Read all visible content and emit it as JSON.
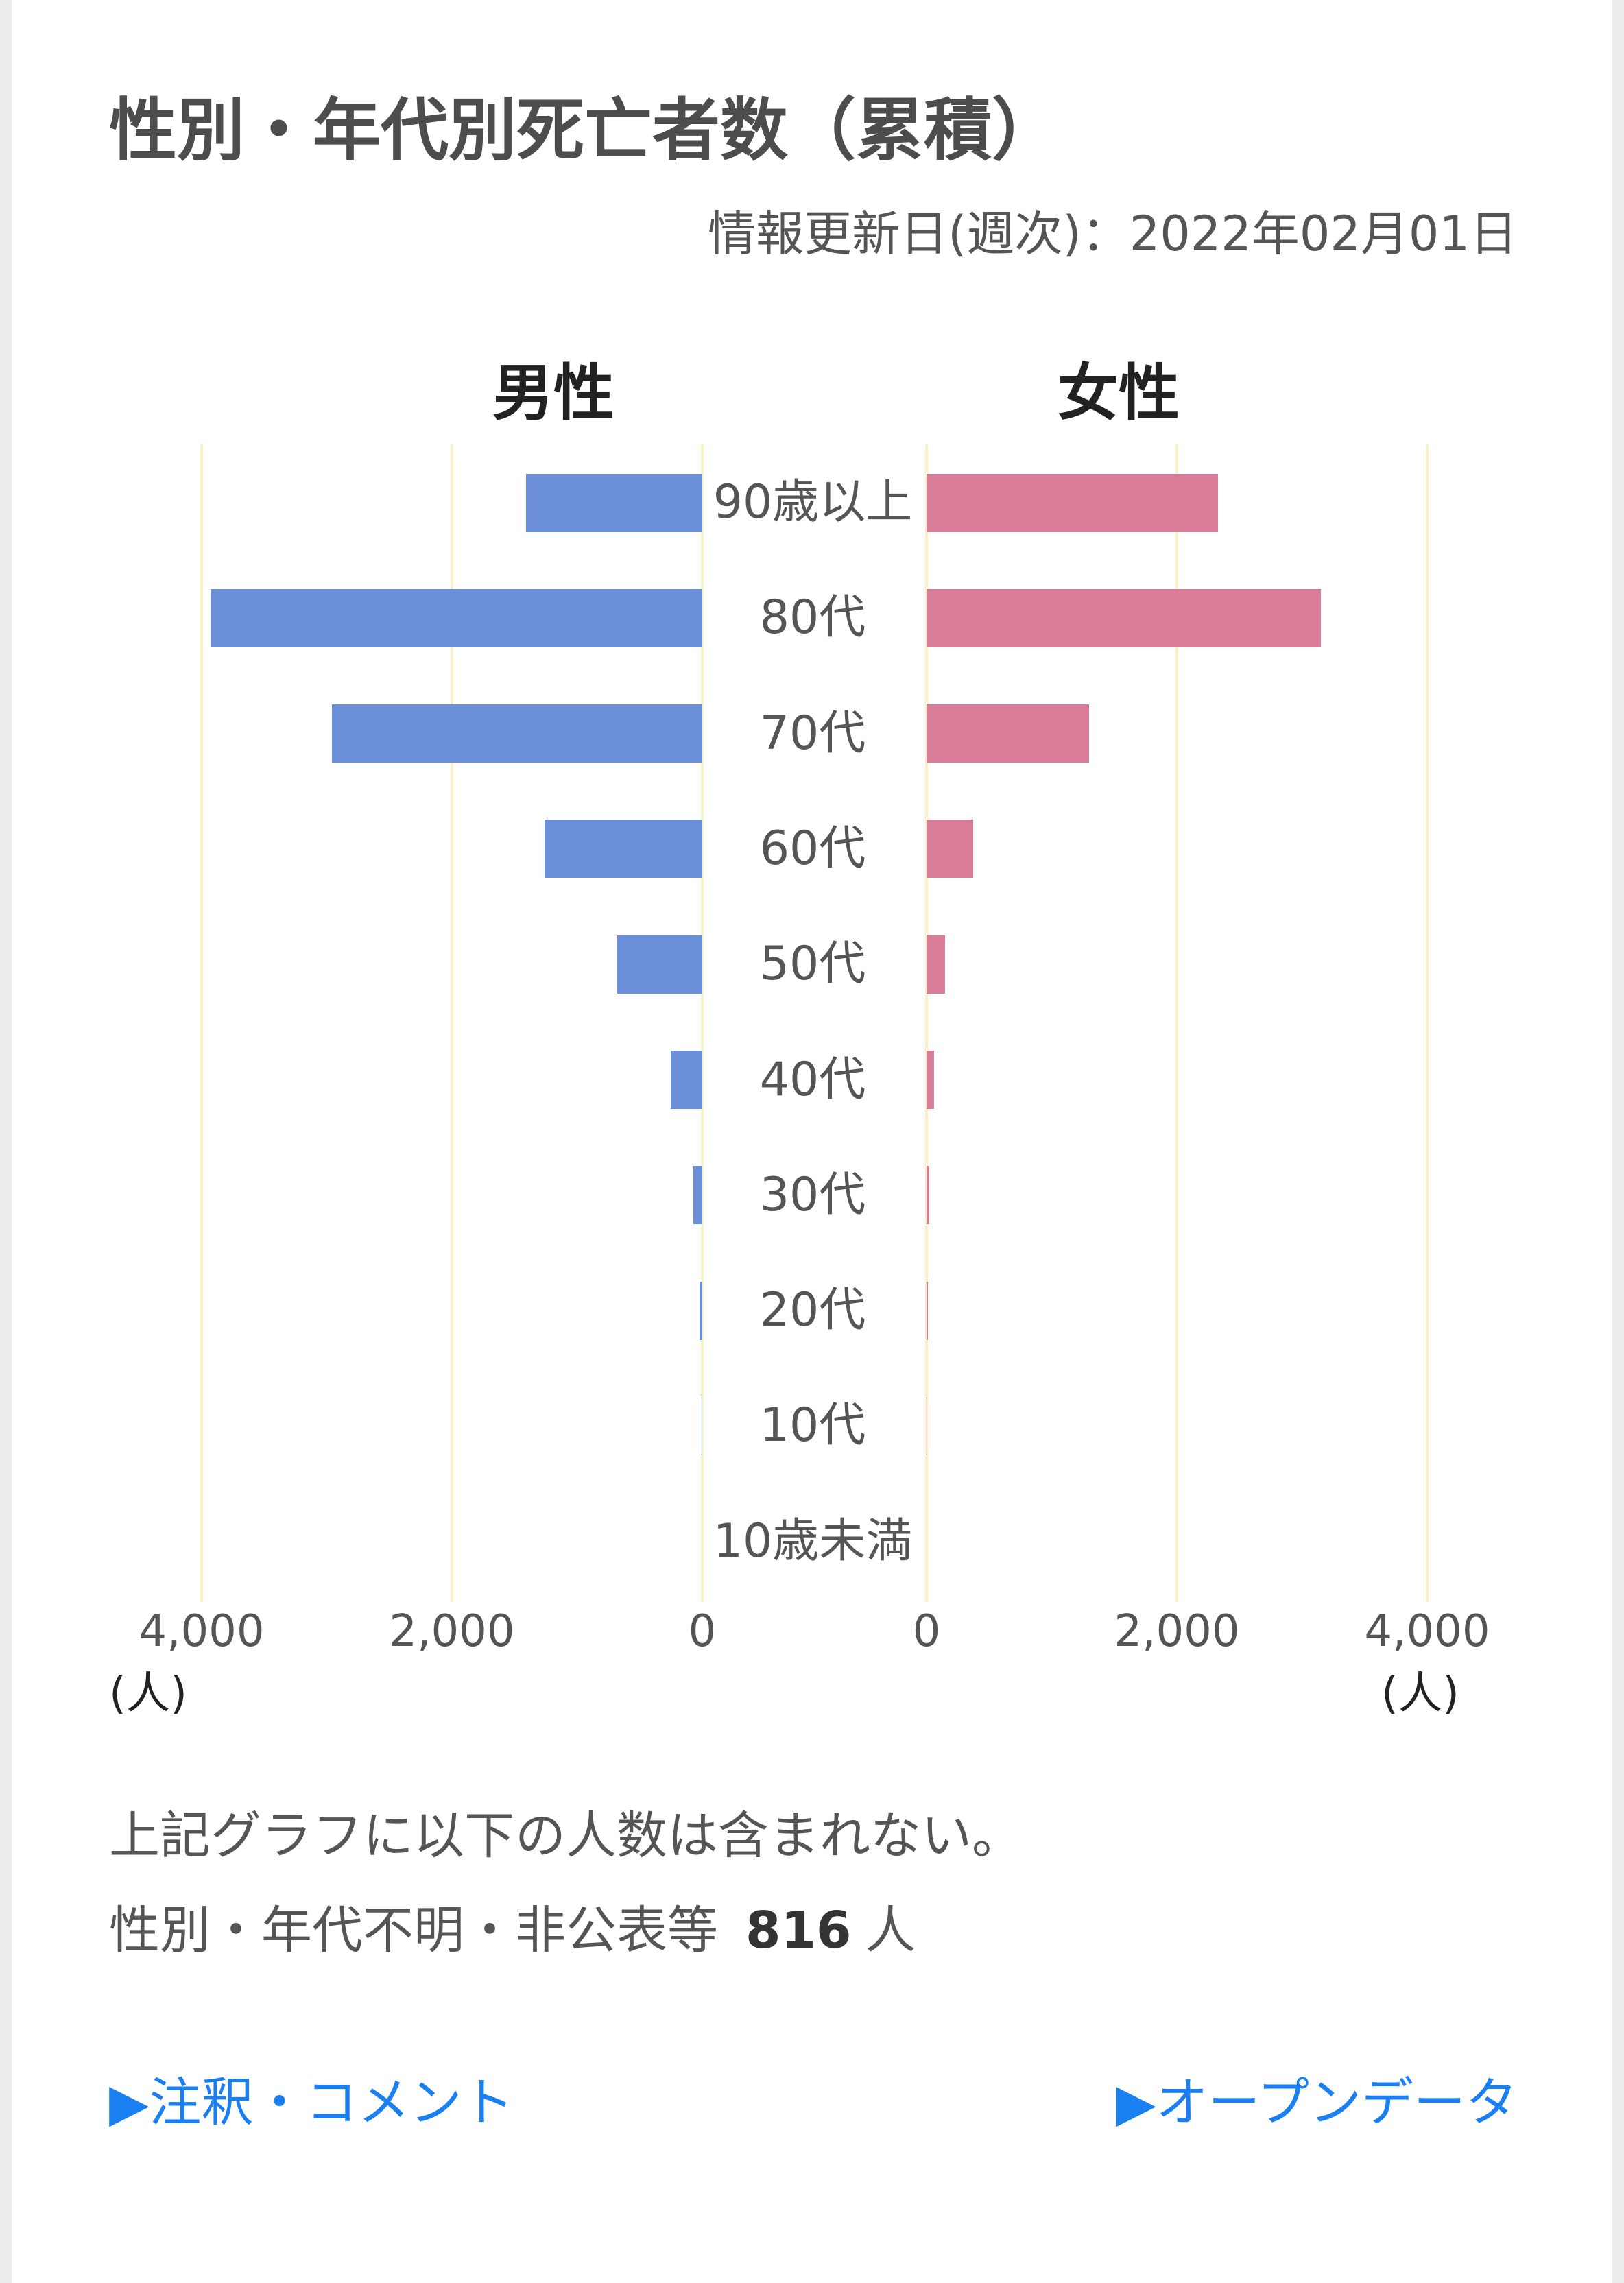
{
  "header": {
    "title": "性別・年代別死亡者数（累積）",
    "update_text": "情報更新日(週次)：2022年02月01日"
  },
  "chart_data": {
    "type": "bar",
    "orientation": "horizontal",
    "mirrored": true,
    "categories": [
      "90歳以上",
      "80代",
      "70代",
      "60代",
      "50代",
      "40代",
      "30代",
      "20代",
      "10代",
      "10歳未満"
    ],
    "series": [
      {
        "name": "男性",
        "color": "#6a8ed8",
        "values": [
          1410,
          3930,
          2960,
          1260,
          680,
          250,
          70,
          20,
          3,
          0
        ]
      },
      {
        "name": "女性",
        "color": "#d87c98",
        "values": [
          2330,
          3150,
          1300,
          370,
          150,
          60,
          20,
          10,
          2,
          0
        ]
      }
    ],
    "xlim": [
      0,
      4000
    ],
    "x_ticks": [
      0,
      2000,
      4000
    ],
    "x_tick_labels": [
      "0",
      "2,000",
      "4,000"
    ],
    "x_unit": "(人)",
    "grid": true,
    "grid_color": "#fbf1c6"
  },
  "notes": {
    "excluded_intro": "上記グラフに以下の人数は含まれない。",
    "excluded_label": "性別・年代不明・非公表等",
    "excluded_count": "816",
    "excluded_unit": "人"
  },
  "links": {
    "annotations": "▶注釈・コメント",
    "open_data": "▶オープンデータ",
    "color": "#1a7ff0"
  }
}
